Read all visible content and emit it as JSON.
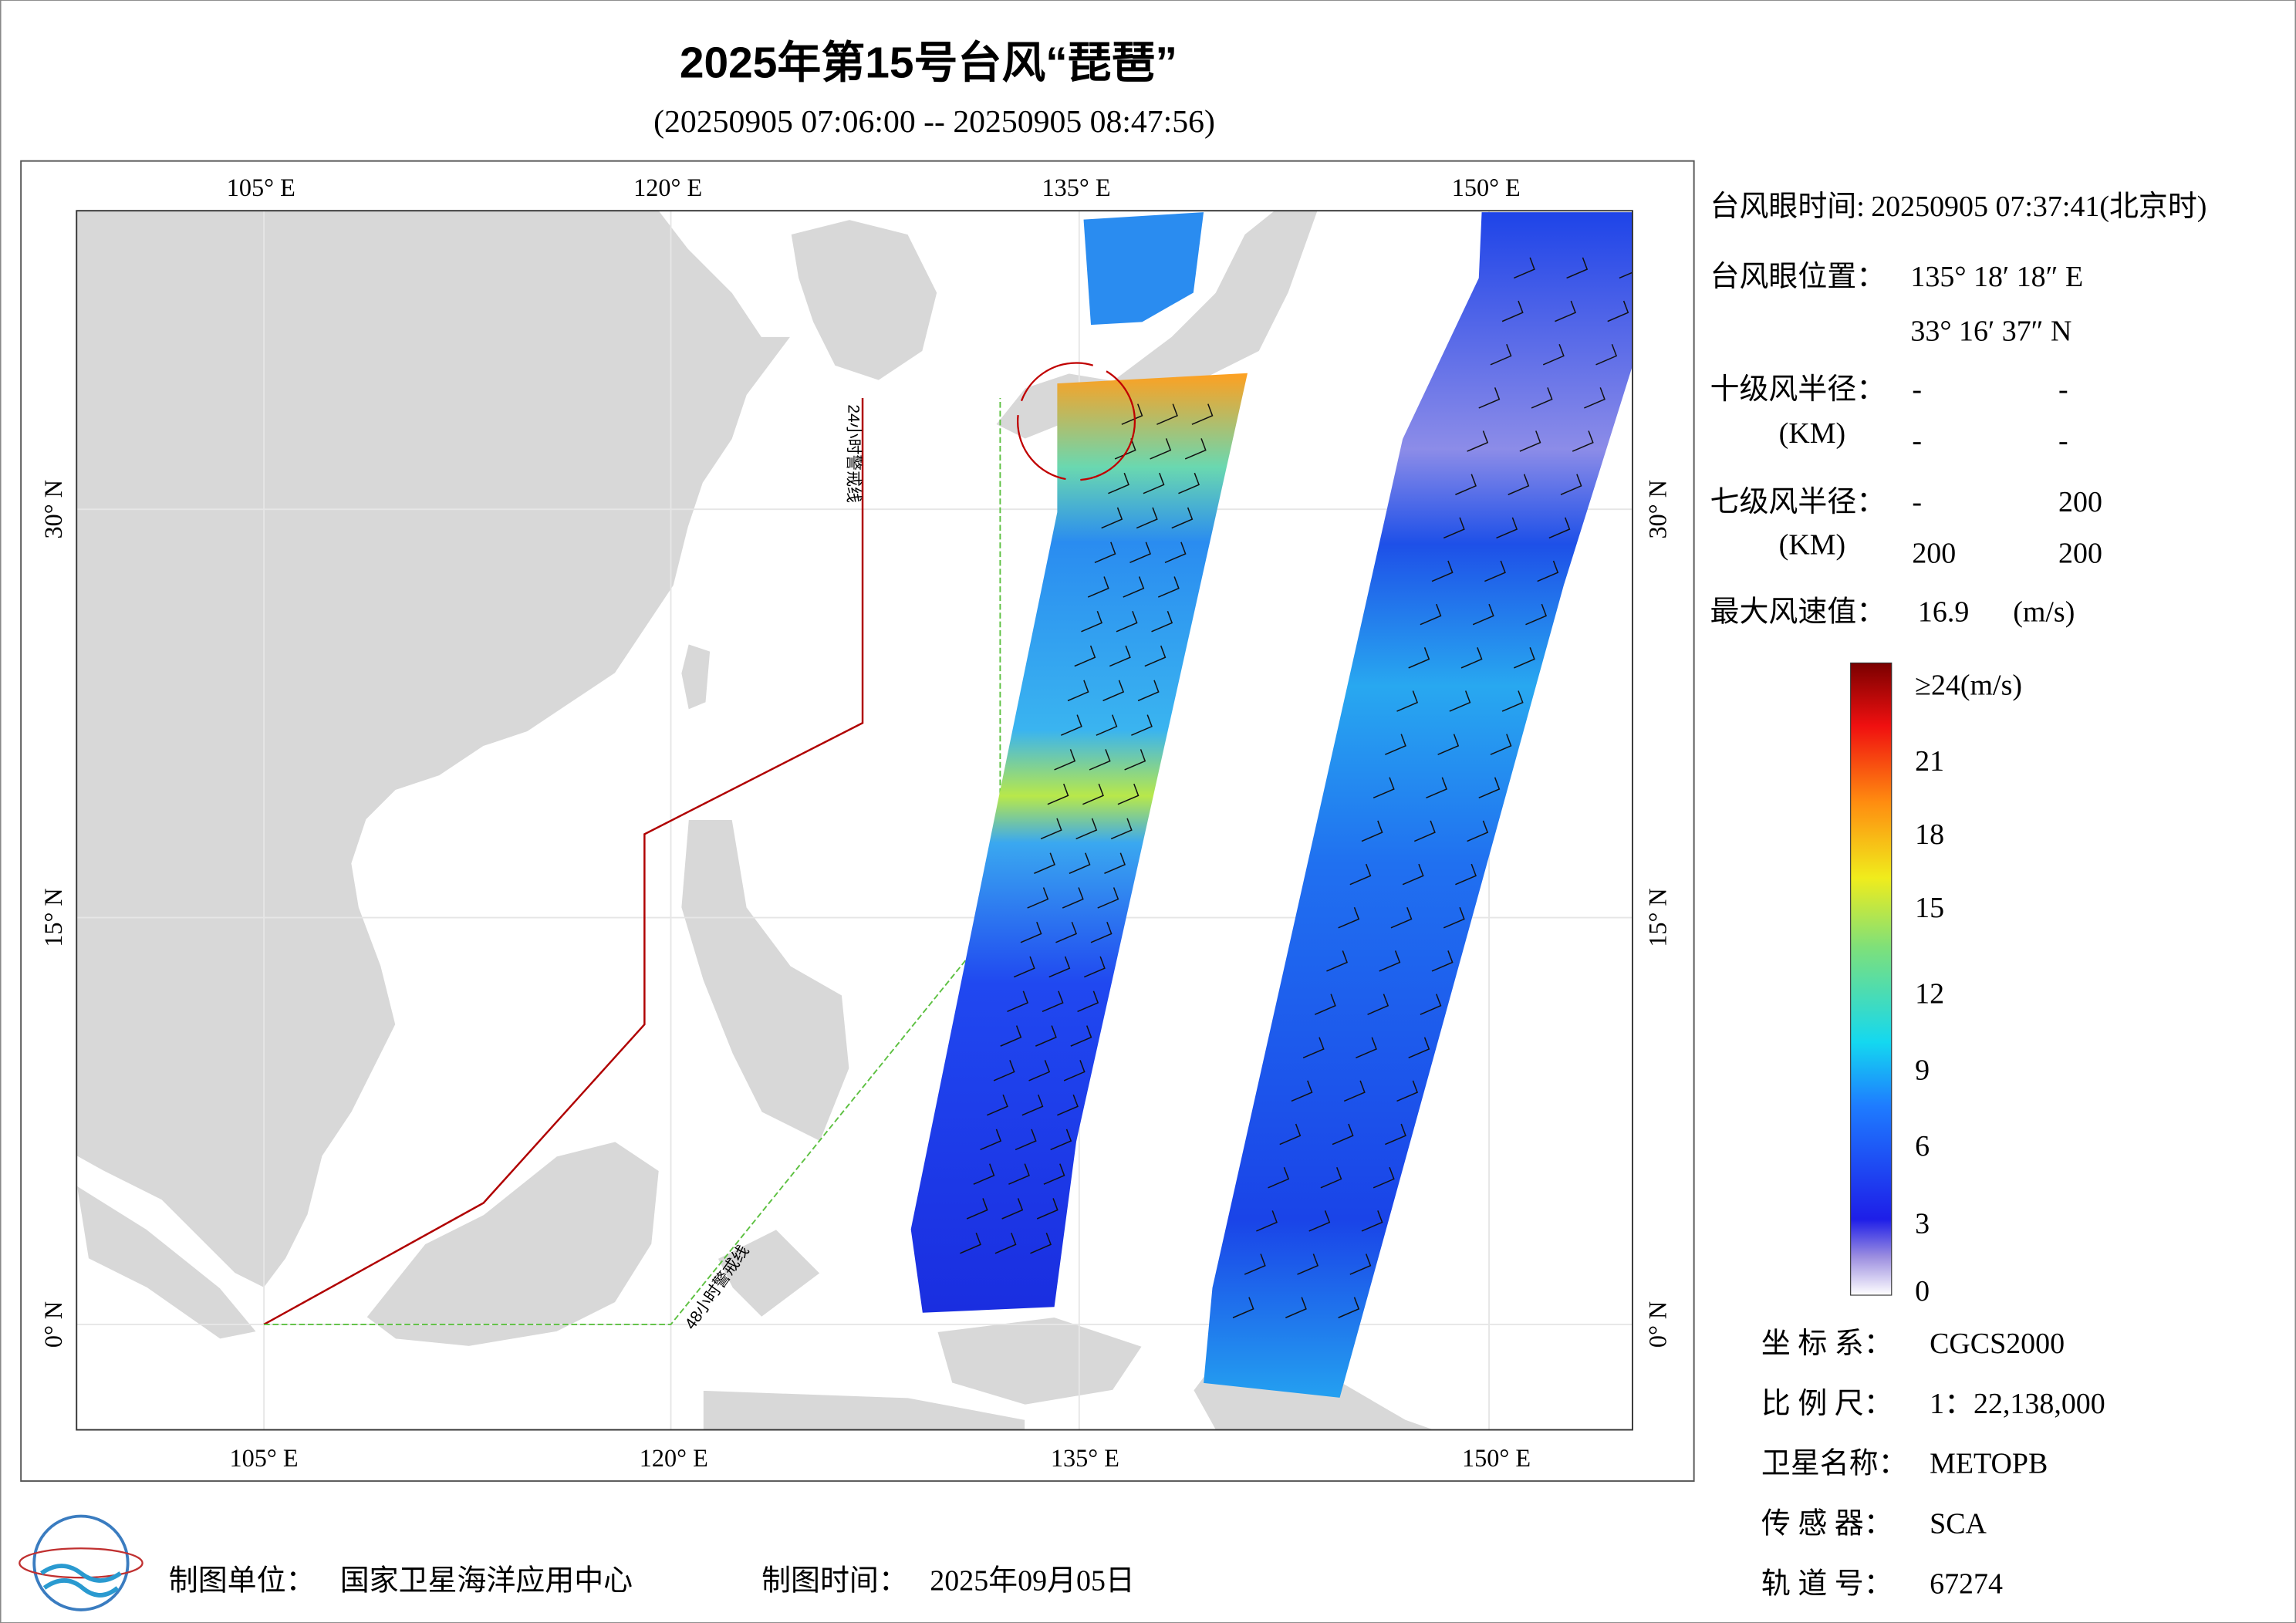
{
  "header": {
    "title": "2025年第15号台风“琵琶”",
    "subtitle": "(20250905 07:06:00 -- 20250905 08:47:56)"
  },
  "map": {
    "lon_labels": [
      "105° E",
      "120° E",
      "135° E",
      "150° E"
    ],
    "lat_labels": [
      "0° N",
      "15° N",
      "30° N"
    ],
    "warning_lines": [
      "24小时警戒线",
      "48小时警戒线"
    ]
  },
  "info": {
    "eye_time": {
      "label": "台风眼时间:",
      "value": "20250905 07:37:41(北京时)"
    },
    "eye_position": {
      "label": "台风眼位置：",
      "lon": "135° 18′ 18″ E",
      "lat": "33° 16′ 37″ N"
    },
    "radius10": {
      "label": "十级风半径：",
      "unit": "(KM)",
      "values": [
        "-",
        "-",
        "-",
        "-"
      ]
    },
    "radius7": {
      "label": "七级风半径：",
      "unit": "(KM)",
      "values": [
        "-",
        "200",
        "200",
        "200"
      ]
    },
    "max_wind": {
      "label": "最大风速值：",
      "value": "16.9",
      "unit": "(m/s)"
    }
  },
  "colorbar": {
    "labels": [
      "≥24(m/s)",
      "21",
      "18",
      "15",
      "12",
      "9",
      "6",
      "3",
      "0"
    ]
  },
  "metadata": [
    {
      "label": "坐 标 系：",
      "value": "CGCS2000"
    },
    {
      "label": "比 例 尺：",
      "value": "1：22,138,000"
    },
    {
      "label": "卫星名称：",
      "value": "METOPB"
    },
    {
      "label": "传 感 器：",
      "value": "SCA"
    },
    {
      "label": "轨 道 号：",
      "value": "67274"
    }
  ],
  "footer": {
    "producer_label": "制图单位：",
    "producer": "国家卫星海洋应用中心",
    "date_label": "制图时间：",
    "date": "2025年09月05日"
  }
}
